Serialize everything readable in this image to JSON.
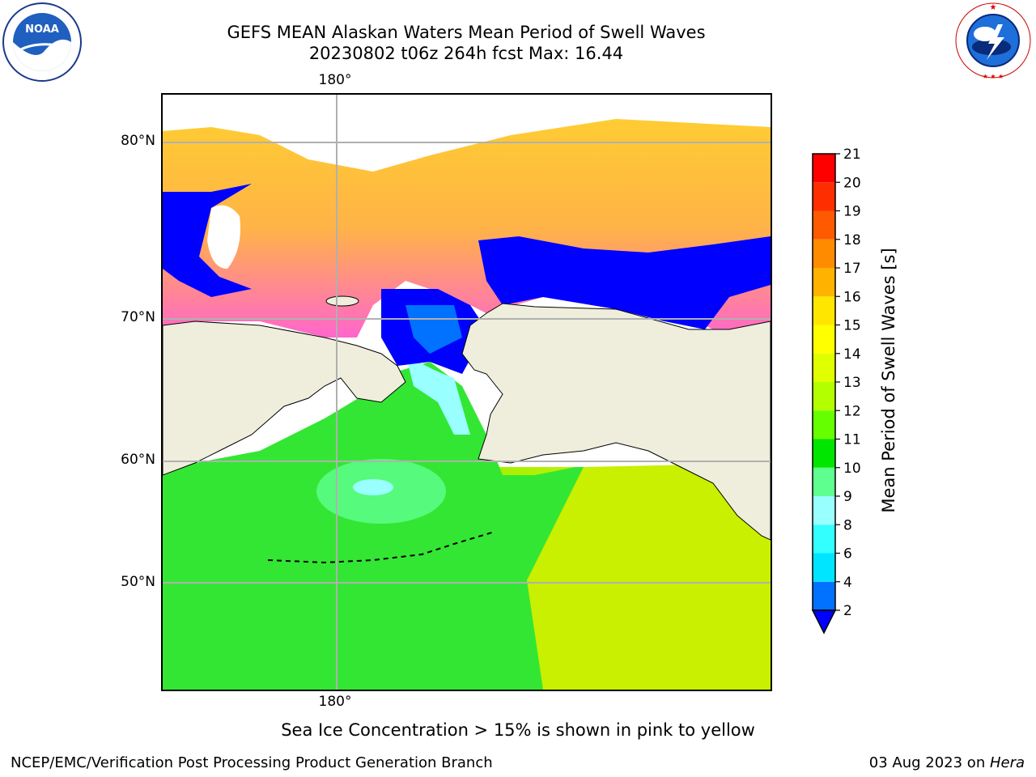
{
  "header": {
    "title_line1": "GEFS MEAN Alaskan Waters Mean Period of Swell Waves",
    "title_line2": "20230802 t06z 264h fcst   Max: 16.44"
  },
  "logos": {
    "noaa": {
      "text": "NOAA",
      "ring_text": "NATIONAL OCEANIC AND ATMOSPHERIC ADMINISTRATION · U.S. DEPARTMENT OF COMMERCE"
    },
    "nws": {
      "ring_text": "NATIONAL WEATHER SERVICE"
    }
  },
  "map": {
    "lon_label_top": "180°",
    "lon_label_bottom": "180°",
    "lat_labels": [
      "80°N",
      "70°N",
      "60°N",
      "50°N"
    ]
  },
  "colorbar": {
    "label": "Mean Period of Swell Waves [s]",
    "ticks": [
      "2",
      "4",
      "6",
      "8",
      "9",
      "10",
      "11",
      "12",
      "13",
      "14",
      "15",
      "16",
      "17",
      "18",
      "19",
      "20",
      "21"
    ],
    "colors": [
      "#0072ff",
      "#00e5ff",
      "#33ffff",
      "#99ffff",
      "#5fff8f",
      "#00e600",
      "#66ff00",
      "#b3ff00",
      "#e0ff00",
      "#ffff00",
      "#ffe600",
      "#ffb300",
      "#ff8c00",
      "#ff5a00",
      "#ff2e00",
      "#ff0000"
    ],
    "extend_color": "#0000ff"
  },
  "caption": "Sea Ice Concentration > 15% is shown in pink to yellow",
  "footer": {
    "left": "NCEP/EMC/Verification Post Processing Product Generation Branch",
    "right_prefix": "03 Aug 2023 on ",
    "right_host": "Hera"
  }
}
